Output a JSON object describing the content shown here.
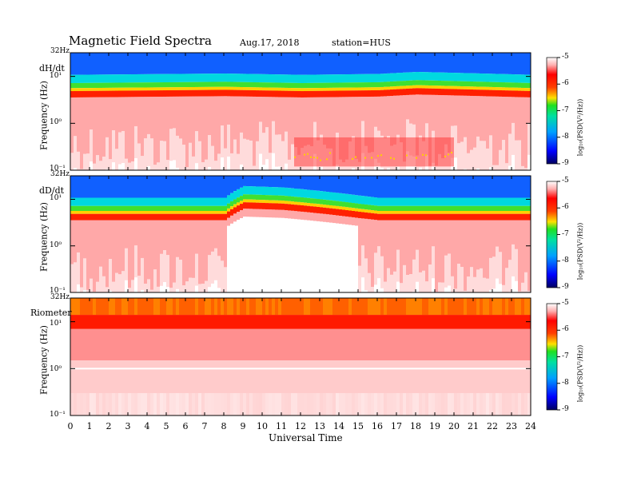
{
  "header": {
    "title": "Magnetic  Field  Spectra",
    "date": "Aug.17, 2018",
    "station": "station=HUS"
  },
  "panels": [
    {
      "channel": "dH/dt",
      "ylabel": "Frequency  (Hz)",
      "top_label": "32Hz",
      "yticks": [
        "10¹",
        "10⁰",
        "10⁻¹"
      ]
    },
    {
      "channel": "dD/dt",
      "ylabel": "Frequency  (Hz)",
      "top_label": "32Hz",
      "yticks": [
        "10¹",
        "10⁰",
        "10⁻¹"
      ]
    },
    {
      "channel": "Riometer",
      "ylabel": "Frequency  (Hz)",
      "top_label": "32Hz",
      "yticks": [
        "10¹",
        "10⁰",
        "10⁻¹"
      ]
    }
  ],
  "colorbar": {
    "label": "log₁₀(PSD(V²/Hz))",
    "ticks": [
      "-5",
      "-6",
      "-7",
      "-8",
      "-9"
    ]
  },
  "chart_data": {
    "type": "heatmap",
    "xlabel": "Universal Time",
    "xticks": [
      "0",
      "1",
      "2",
      "3",
      "4",
      "5",
      "6",
      "7",
      "8",
      "9",
      "10",
      "11",
      "12",
      "13",
      "14",
      "15",
      "16",
      "17",
      "18",
      "19",
      "20",
      "21",
      "22",
      "23",
      "24"
    ],
    "xlim": [
      0,
      24
    ],
    "ylim_hz": [
      0.1,
      32
    ],
    "yscale": "log",
    "colorscale": [
      "#000080",
      "#0050ff",
      "#00d0ff",
      "#00e060",
      "#ffe000",
      "#ff2000",
      "#ffffff"
    ],
    "clim": [
      -9,
      -5
    ],
    "band_edges_hz": {
      "dH/dt": {
        "hours": [
          0,
          8,
          12,
          16,
          18,
          24
        ],
        "edge": [
          4.5,
          4.8,
          4.5,
          4.7,
          5.2,
          4.5
        ]
      },
      "dD/dt": {
        "hours": [
          0,
          8,
          9,
          11,
          15,
          16,
          24
        ],
        "edge": [
          4.5,
          4.5,
          8.0,
          7.5,
          5.0,
          4.5,
          4.5
        ]
      },
      "Riometer": {
        "hours": [
          0,
          24
        ],
        "edge": [
          8,
          8
        ]
      }
    }
  }
}
